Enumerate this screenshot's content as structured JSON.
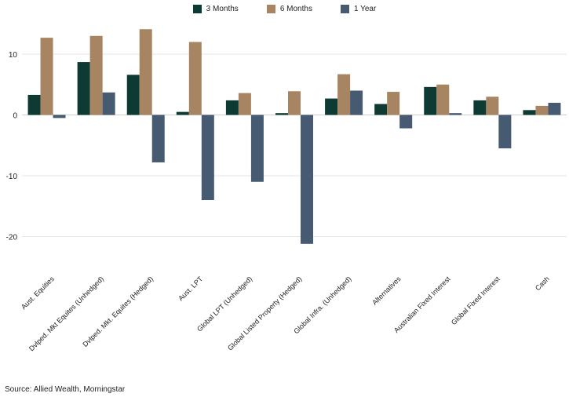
{
  "chart_data": {
    "type": "bar",
    "categories": [
      "Aust. Equities",
      "Dvlped. Mkt Equites (Unhedged)",
      "Dvlped. Mkt. Equites (Hedged)",
      "Aust. LPT",
      "Global LPT (Unhedged)",
      "Global Listed Property (Hedged)",
      "Global Infra. (Unhedged)",
      "Alternatives",
      "Australian Fixed Interest",
      "Global Fixed Interest",
      "Cash"
    ],
    "series": [
      {
        "name": "3 Months",
        "color": "#0d3b34",
        "values": [
          3.3,
          8.7,
          6.6,
          0.5,
          2.4,
          0.3,
          2.7,
          1.8,
          4.6,
          2.4,
          0.8
        ]
      },
      {
        "name": "6 Months",
        "color": "#a88562",
        "values": [
          12.7,
          13.0,
          14.1,
          12.0,
          3.6,
          3.9,
          6.7,
          3.8,
          5.0,
          3.0,
          1.5
        ]
      },
      {
        "name": "1 Year",
        "color": "#465a72",
        "values": [
          -0.5,
          3.7,
          -7.8,
          -14.0,
          -11.0,
          -21.2,
          4.0,
          -2.2,
          0.3,
          -5.5,
          2.0
        ]
      }
    ],
    "yticks": [
      10,
      0,
      -10,
      -20
    ],
    "ylim": [
      -24,
      15
    ],
    "grid": true,
    "legend_position": "top-center"
  },
  "source": "Source: Allied Wealth, Morningstar"
}
